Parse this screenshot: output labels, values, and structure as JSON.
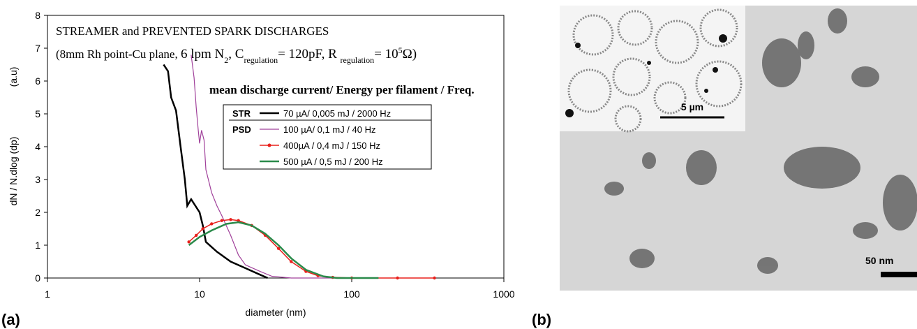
{
  "chart_data": {
    "type": "line",
    "xscale": "log",
    "x_label": "diameter (nm)",
    "y_label": "dN / N.dlog (dp)",
    "y_unit": "(a.u)",
    "annotation": "STREAMER and PREVENTED SPARK DISCHARGES",
    "annotation_parts": [
      {
        "text": "(8mm Rh point-Cu plane, ",
        "style": "normal"
      },
      {
        "text": "6 lpm N",
        "style": "big"
      },
      {
        "text": "2",
        "style": "sub"
      },
      {
        "text": ", C",
        "style": "big"
      },
      {
        "text": "regulation",
        "style": "sub"
      },
      {
        "text": "= 120pF, R ",
        "style": "big"
      },
      {
        "text": "regulation",
        "style": "sub"
      },
      {
        "text": "= 10",
        "style": "big"
      },
      {
        "text": "5",
        "style": "sup"
      },
      {
        "text": "Ω)",
        "style": "big"
      }
    ],
    "legend_title": "mean discharge current/ Energy per filament / Freq.",
    "legend_groups": [
      "STR",
      "PSD"
    ],
    "xlim": [
      1,
      1000
    ],
    "xticks": [
      1,
      10,
      100,
      1000
    ],
    "ylim": [
      0,
      8
    ],
    "yticks": [
      0,
      1,
      2,
      3,
      4,
      5,
      6,
      7,
      8
    ],
    "series": [
      {
        "name": "70 µA/ 0,005 mJ / 2000 Hz",
        "color": "#000000",
        "width": 2.5,
        "marker": false,
        "x": [
          5.8,
          6.2,
          6.5,
          7,
          7.5,
          8,
          8.3,
          8.8,
          10,
          10.5,
          11,
          13,
          16,
          20,
          25,
          28
        ],
        "values": [
          6.5,
          6.3,
          5.5,
          5.1,
          4.0,
          3.0,
          2.2,
          2.4,
          2.0,
          1.6,
          1.1,
          0.8,
          0.5,
          0.3,
          0.1,
          0
        ]
      },
      {
        "name": "100 µA/ 0,1 mJ / 40 Hz",
        "color": "#a0409a",
        "width": 1.2,
        "marker": false,
        "x": [
          8.8,
          9.2,
          9.5,
          9.8,
          10,
          10.3,
          10.7,
          11,
          12,
          13,
          14,
          16,
          18,
          20,
          25,
          30,
          40,
          100
        ],
        "values": [
          6.8,
          6.1,
          5.2,
          4.5,
          4.1,
          4.5,
          4.2,
          3.3,
          2.6,
          2.2,
          1.9,
          1.3,
          0.7,
          0.4,
          0.2,
          0.05,
          0,
          0
        ]
      },
      {
        "name": "400µA / 0,4 mJ / 150 Hz",
        "color": "#e8201c",
        "width": 1.5,
        "marker": true,
        "x": [
          8.5,
          9.5,
          10.5,
          12,
          14,
          16,
          18,
          22,
          27,
          33,
          40,
          50,
          60,
          75,
          100,
          200,
          350
        ],
        "values": [
          1.1,
          1.3,
          1.5,
          1.65,
          1.75,
          1.78,
          1.75,
          1.6,
          1.3,
          0.9,
          0.5,
          0.2,
          0.07,
          0.02,
          0,
          0,
          0
        ]
      },
      {
        "name": "500 µA / 0,5 mJ / 200 Hz",
        "color": "#2a8a4a",
        "width": 2.5,
        "marker": false,
        "x": [
          8.5,
          10,
          12,
          15,
          18,
          22,
          27,
          33,
          40,
          50,
          65,
          80,
          150
        ],
        "values": [
          1.0,
          1.25,
          1.45,
          1.65,
          1.7,
          1.6,
          1.35,
          1.0,
          0.6,
          0.25,
          0.05,
          0,
          0
        ]
      }
    ]
  },
  "panels": {
    "a": "(a)",
    "b": "(b)"
  },
  "image": {
    "inset_scale": "5 µm",
    "main_scale": "50 nm"
  }
}
